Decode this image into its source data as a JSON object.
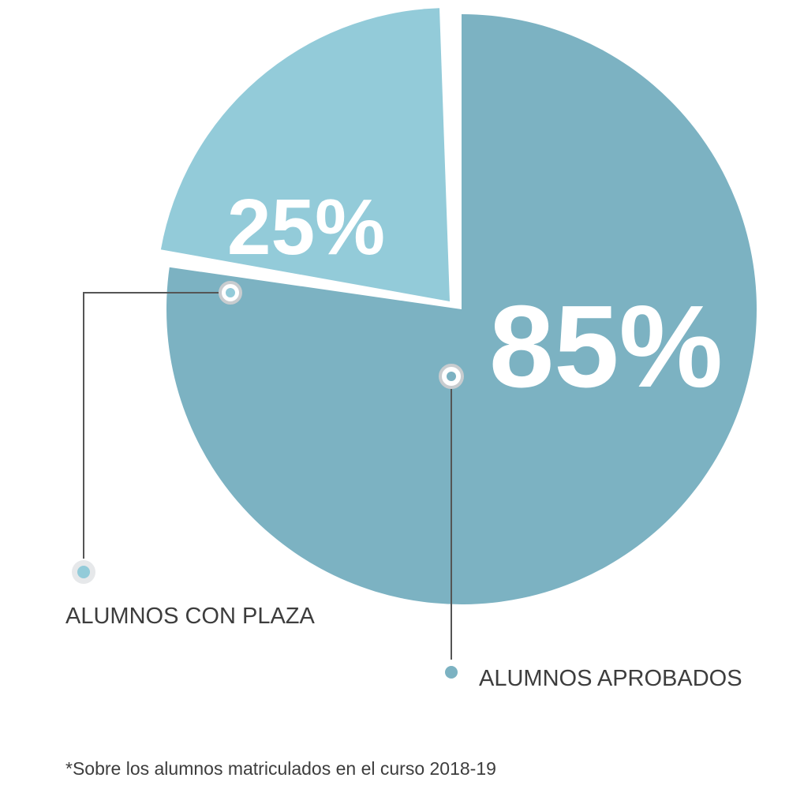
{
  "chart_data": {
    "type": "pie",
    "slices": [
      {
        "name": "ALUMNOS APROBADOS",
        "value": 85,
        "label": "85%",
        "color": "#7cb2c2"
      },
      {
        "name": "ALUMNOS CON PLAZA",
        "value": 25,
        "label": "25%",
        "color": "#93cbd9"
      }
    ],
    "footnote": "*Sobre los alumnos matriculados en el curso 2018-19",
    "connector_color": "#555555"
  }
}
